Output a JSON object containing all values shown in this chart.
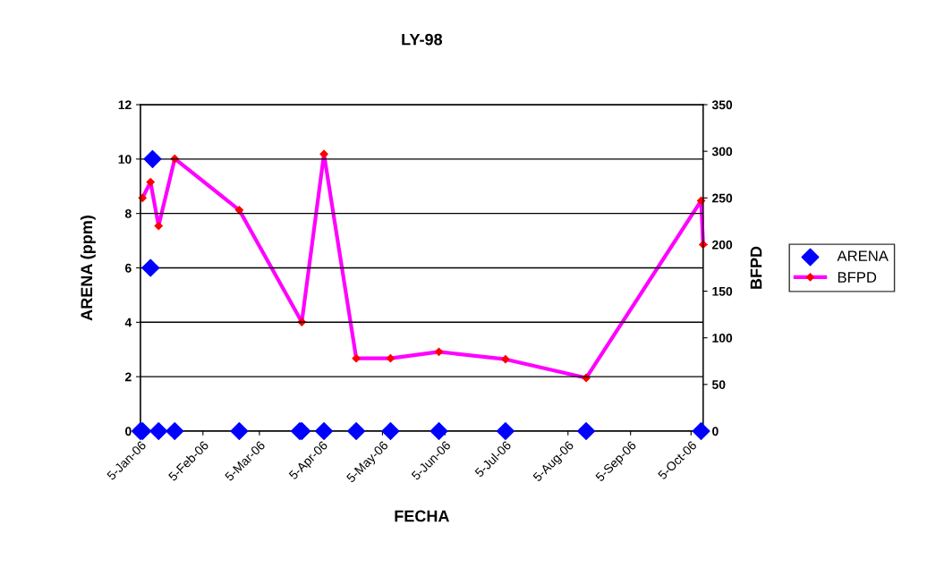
{
  "chart_data": {
    "type": "scatter",
    "title": "LY-98",
    "xlabel": "FECHA",
    "ylabel": "ARENA (ppm)",
    "y2label": "BFPD",
    "xlim": [
      "2006-01-05",
      "2006-10-11"
    ],
    "xticks": [
      {
        "value": "2006-01-05",
        "label": "5-Jan-06"
      },
      {
        "value": "2006-02-05",
        "label": "5-Feb-06"
      },
      {
        "value": "2006-03-05",
        "label": "5-Mar-06"
      },
      {
        "value": "2006-04-05",
        "label": "5-Apr-06"
      },
      {
        "value": "2006-05-05",
        "label": "5-May-06"
      },
      {
        "value": "2006-06-05",
        "label": "5-Jun-06"
      },
      {
        "value": "2006-07-05",
        "label": "5-Jul-06"
      },
      {
        "value": "2006-08-05",
        "label": "5-Aug-06"
      },
      {
        "value": "2006-09-05",
        "label": "5-Sep-06"
      },
      {
        "value": "2006-10-05",
        "label": "5-Oct-06"
      }
    ],
    "ylim": [
      0,
      12
    ],
    "yticks": [
      0,
      2,
      4,
      6,
      8,
      10,
      12
    ],
    "y2lim": [
      0,
      350
    ],
    "y2ticks": [
      0,
      50,
      100,
      150,
      200,
      250,
      300,
      350
    ],
    "grid": "y",
    "legend": "right",
    "series": [
      {
        "name": "ARENA",
        "color": "#0000ff",
        "marker": "diamond",
        "x": [
          "2006-01-05",
          "2006-01-06",
          "2006-01-10",
          "2006-01-11",
          "2006-01-14",
          "2006-01-22",
          "2006-02-23",
          "2006-03-25",
          "2006-03-26",
          "2006-04-06",
          "2006-04-22",
          "2006-05-09",
          "2006-06-02",
          "2006-07-05",
          "2006-08-14",
          "2006-10-10"
        ],
        "values": [
          0,
          0,
          6,
          10,
          0,
          0,
          0,
          0,
          0,
          0,
          0,
          0,
          0,
          0,
          0,
          0
        ]
      },
      {
        "name": "BFPD",
        "type": "line",
        "axis": "y2",
        "color": "#ff00ff",
        "marker": "diamond",
        "line_style": "solid",
        "x": [
          "2006-01-06",
          "2006-01-10",
          "2006-01-14",
          "2006-01-22",
          "2006-02-23",
          "2006-03-26",
          "2006-04-06",
          "2006-04-22",
          "2006-05-09",
          "2006-06-02",
          "2006-07-05",
          "2006-08-14",
          "2006-10-10",
          "2006-10-11"
        ],
        "values": [
          250,
          267,
          220,
          292,
          237,
          117,
          297,
          78,
          78,
          85,
          77,
          57,
          247,
          200
        ]
      }
    ]
  }
}
